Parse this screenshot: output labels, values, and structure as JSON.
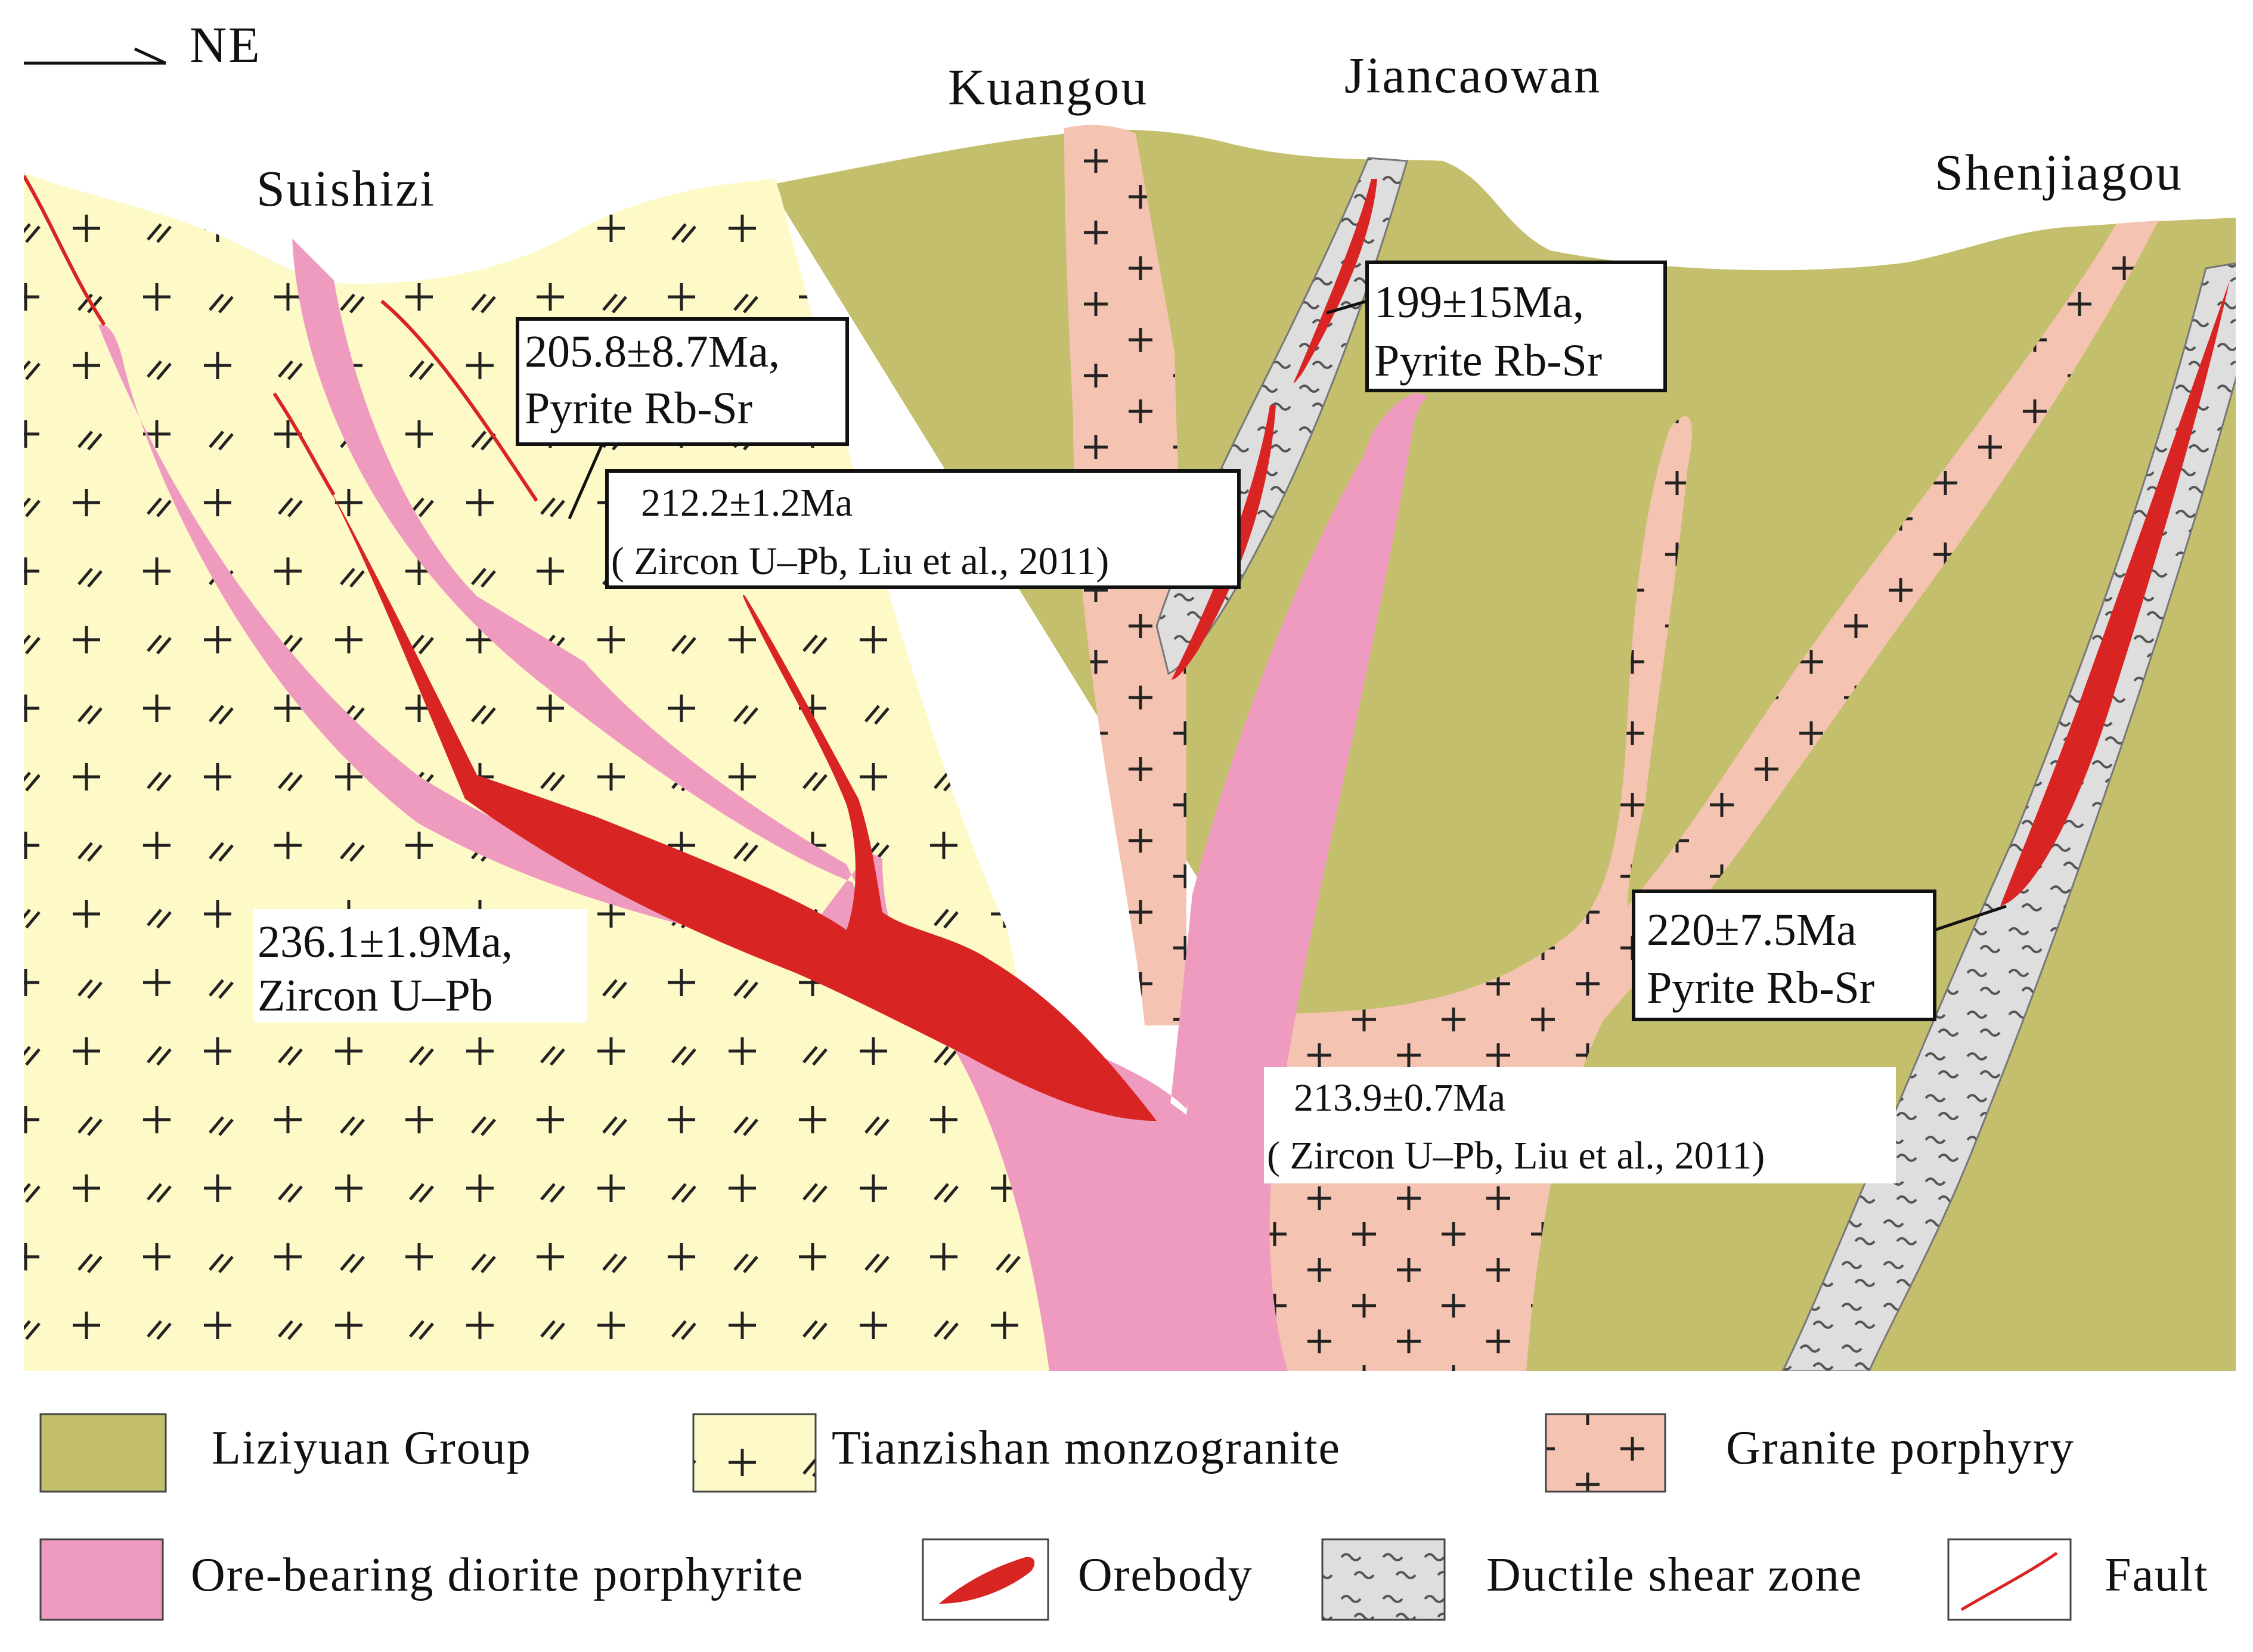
{
  "direction": "NE",
  "places": [
    "Suishizi",
    "Kuangou",
    "Jiancaowan",
    "Shenjiagou"
  ],
  "ages": {
    "a205": [
      "205.8±8.7Ma,",
      "Pyrite Rb-Sr"
    ],
    "a212": [
      "212.2±1.2Ma",
      "( Zircon U–Pb, Liu et al., 2011)"
    ],
    "a199": [
      "199±15Ma,",
      "Pyrite Rb-Sr"
    ],
    "a236": [
      "236.1±1.9Ma,",
      "Zircon U–Pb"
    ],
    "a214": [
      "213.9±0.7Ma",
      "( Zircon U–Pb, Liu et al., 2011)"
    ],
    "a220": [
      "220±7.5Ma",
      "Pyrite Rb-Sr"
    ]
  },
  "legend": [
    {
      "label": "Liziyuan Group",
      "color": "#c4bf6c",
      "icon": "liziyuan-swatch"
    },
    {
      "label": "Tianzishan monzogranite",
      "color": "#fdfac8",
      "icon": "monzogranite-swatch"
    },
    {
      "label": "Granite porphyry",
      "color": "#f5c3b1",
      "icon": "granite-porphyry-swatch"
    },
    {
      "label": "Ore-bearing diorite porphyrite",
      "color": "#ee9bbf",
      "icon": "diorite-swatch"
    },
    {
      "label": "Orebody",
      "color": "#d92424",
      "icon": "orebody-swatch"
    },
    {
      "label": "Ductile shear zone",
      "color": "#dedede",
      "icon": "shear-zone-swatch"
    },
    {
      "label": "Fault",
      "color": "#d92424",
      "icon": "fault-swatch"
    }
  ]
}
